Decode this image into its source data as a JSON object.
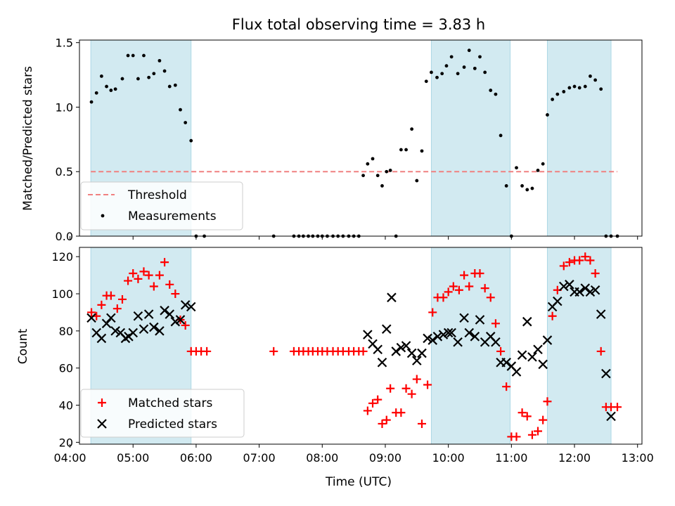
{
  "chart_data": [
    {
      "type": "scatter",
      "title": "Flux total observing time = 3.83 h",
      "ylabel": "Matched/Predicted stars",
      "ylim": [
        0,
        1.52
      ],
      "xlim": [
        4.15,
        13.07
      ],
      "yticks": [
        "0.0",
        "0.5",
        "1.0",
        "1.5"
      ],
      "shaded_intervals_hours": [
        [
          4.33,
          5.92
        ],
        [
          9.73,
          10.98
        ],
        [
          11.57,
          12.58
        ]
      ],
      "shade_color": "#add8e6",
      "threshold": {
        "name": "Threshold",
        "y": 0.5,
        "x_range": [
          4.33,
          12.68
        ],
        "color": "#f08080"
      },
      "legend": {
        "placement": "lower-left",
        "entries": [
          "Threshold",
          "Measurements"
        ]
      },
      "series": [
        {
          "name": "Measurements",
          "color": "#000000",
          "x": [
            4.34,
            4.42,
            4.5,
            4.58,
            4.65,
            4.72,
            4.83,
            4.92,
            5.0,
            5.08,
            5.17,
            5.25,
            5.33,
            5.42,
            5.5,
            5.58,
            5.67,
            5.75,
            5.83,
            5.92,
            6.0,
            6.13,
            7.23,
            7.55,
            7.63,
            7.7,
            7.78,
            7.85,
            7.93,
            8.0,
            8.08,
            8.17,
            8.25,
            8.33,
            8.42,
            8.5,
            8.58,
            8.65,
            8.72,
            8.8,
            8.88,
            8.95,
            9.02,
            9.08,
            9.17,
            9.25,
            9.33,
            9.42,
            9.5,
            9.58,
            9.65,
            9.73,
            9.82,
            9.9,
            9.97,
            10.05,
            10.15,
            10.25,
            10.33,
            10.42,
            10.5,
            10.58,
            10.67,
            10.75,
            10.83,
            10.92,
            11.0,
            11.08,
            11.17,
            11.25,
            11.33,
            11.42,
            11.5,
            11.57,
            11.65,
            11.73,
            11.83,
            11.92,
            12.0,
            12.08,
            12.17,
            12.25,
            12.33,
            12.42,
            12.5,
            12.58,
            12.68
          ],
          "y": [
            1.04,
            1.11,
            1.24,
            1.16,
            1.13,
            1.14,
            1.22,
            1.4,
            1.4,
            1.22,
            1.4,
            1.23,
            1.26,
            1.36,
            1.28,
            1.16,
            1.17,
            0.98,
            0.88,
            0.74,
            0.0,
            0.0,
            0.0,
            0.0,
            0.0,
            0.0,
            0.0,
            0.0,
            0.0,
            0.0,
            0.0,
            0.0,
            0.0,
            0.0,
            0.0,
            0.0,
            0.0,
            0.47,
            0.56,
            0.6,
            0.47,
            0.39,
            0.5,
            0.51,
            0.0,
            0.67,
            0.67,
            0.83,
            0.43,
            0.66,
            1.2,
            1.27,
            1.23,
            1.26,
            1.32,
            1.39,
            1.26,
            1.31,
            1.44,
            1.3,
            1.39,
            1.27,
            1.13,
            1.1,
            0.78,
            0.39,
            0.0,
            0.53,
            0.39,
            0.36,
            0.37,
            0.51,
            0.56,
            0.94,
            1.06,
            1.1,
            1.12,
            1.15,
            1.16,
            1.15,
            1.16,
            1.24,
            1.21,
            1.14,
            0.0,
            0.0,
            0.0
          ]
        }
      ]
    },
    {
      "type": "scatter",
      "xlabel": "Time (UTC)",
      "ylabel": "Count",
      "ylim": [
        19,
        125
      ],
      "xlim": [
        4.15,
        13.07
      ],
      "yticks": [
        "20",
        "40",
        "60",
        "80",
        "100",
        "120"
      ],
      "xticks": [
        "04:00",
        "05:00",
        "06:00",
        "07:00",
        "08:00",
        "09:00",
        "10:00",
        "11:00",
        "12:00",
        "13:00"
      ],
      "shaded_intervals_hours": [
        [
          4.33,
          5.92
        ],
        [
          9.73,
          10.98
        ],
        [
          11.57,
          12.58
        ]
      ],
      "shade_color": "#add8e6",
      "legend": {
        "placement": "lower-left",
        "entries": [
          "Matched stars",
          "Predicted stars"
        ]
      },
      "series": [
        {
          "name": "Matched stars",
          "marker": "+",
          "color": "#ff0000",
          "x": [
            4.34,
            4.42,
            4.5,
            4.58,
            4.65,
            4.75,
            4.83,
            4.92,
            5.0,
            5.08,
            5.17,
            5.25,
            5.33,
            5.42,
            5.5,
            5.58,
            5.67,
            5.75,
            5.83,
            5.92,
            6.0,
            6.08,
            6.17,
            7.23,
            7.55,
            7.63,
            7.7,
            7.78,
            7.85,
            7.93,
            8.0,
            8.08,
            8.17,
            8.25,
            8.33,
            8.42,
            8.5,
            8.58,
            8.65,
            8.72,
            8.8,
            8.88,
            8.95,
            9.02,
            9.08,
            9.17,
            9.25,
            9.33,
            9.42,
            9.5,
            9.58,
            9.67,
            9.75,
            9.83,
            9.92,
            10.0,
            10.08,
            10.17,
            10.25,
            10.33,
            10.42,
            10.5,
            10.58,
            10.67,
            10.75,
            10.83,
            10.92,
            11.0,
            11.08,
            11.17,
            11.25,
            11.33,
            11.42,
            11.5,
            11.57,
            11.65,
            11.73,
            11.83,
            11.92,
            12.0,
            12.08,
            12.17,
            12.25,
            12.33,
            12.42,
            12.5,
            12.58,
            12.68
          ],
          "y": [
            90,
            88,
            94,
            99,
            99,
            92,
            97,
            107,
            111,
            108,
            112,
            110,
            104,
            110,
            117,
            105,
            100,
            86,
            83,
            69,
            69,
            69,
            69,
            69,
            69,
            69,
            69,
            69,
            69,
            69,
            69,
            69,
            69,
            69,
            69,
            69,
            69,
            69,
            69,
            37,
            41,
            43,
            30,
            32,
            49,
            36,
            36,
            49,
            46,
            54,
            30,
            51,
            90,
            98,
            98,
            101,
            104,
            102,
            110,
            104,
            111,
            111,
            103,
            98,
            84,
            69,
            50,
            23,
            23,
            36,
            34,
            24,
            26,
            32,
            42,
            88,
            102,
            115,
            117,
            118,
            118,
            120,
            118,
            111,
            69,
            39,
            39,
            39
          ]
        },
        {
          "name": "Predicted stars",
          "marker": "x",
          "color": "#000000",
          "x": [
            4.34,
            4.42,
            4.5,
            4.58,
            4.65,
            4.72,
            4.8,
            4.88,
            4.93,
            5.0,
            5.08,
            5.17,
            5.25,
            5.33,
            5.42,
            5.5,
            5.58,
            5.67,
            5.75,
            5.83,
            5.92,
            8.72,
            8.8,
            8.88,
            8.95,
            9.02,
            9.1,
            9.17,
            9.25,
            9.33,
            9.42,
            9.5,
            9.58,
            9.67,
            9.75,
            9.83,
            9.92,
            10.0,
            10.05,
            10.15,
            10.25,
            10.33,
            10.42,
            10.5,
            10.58,
            10.67,
            10.75,
            10.83,
            10.92,
            11.0,
            11.08,
            11.17,
            11.25,
            11.33,
            11.42,
            11.5,
            11.57,
            11.65,
            11.73,
            11.83,
            11.92,
            12.0,
            12.08,
            12.17,
            12.25,
            12.33,
            12.42,
            12.5,
            12.58
          ],
          "y": [
            87,
            79,
            76,
            84,
            87,
            80,
            79,
            76,
            77,
            79,
            88,
            81,
            89,
            82,
            80,
            91,
            89,
            85,
            86,
            94,
            93,
            78,
            73,
            70,
            63,
            81,
            98,
            69,
            71,
            72,
            68,
            64,
            68,
            76,
            75,
            77,
            78,
            79,
            79,
            74,
            87,
            79,
            77,
            86,
            74,
            77,
            74,
            63,
            63,
            61,
            58,
            67,
            85,
            66,
            70,
            62,
            75,
            93,
            96,
            104,
            105,
            101,
            101,
            103,
            101,
            102,
            89,
            57,
            34
          ]
        }
      ]
    }
  ]
}
